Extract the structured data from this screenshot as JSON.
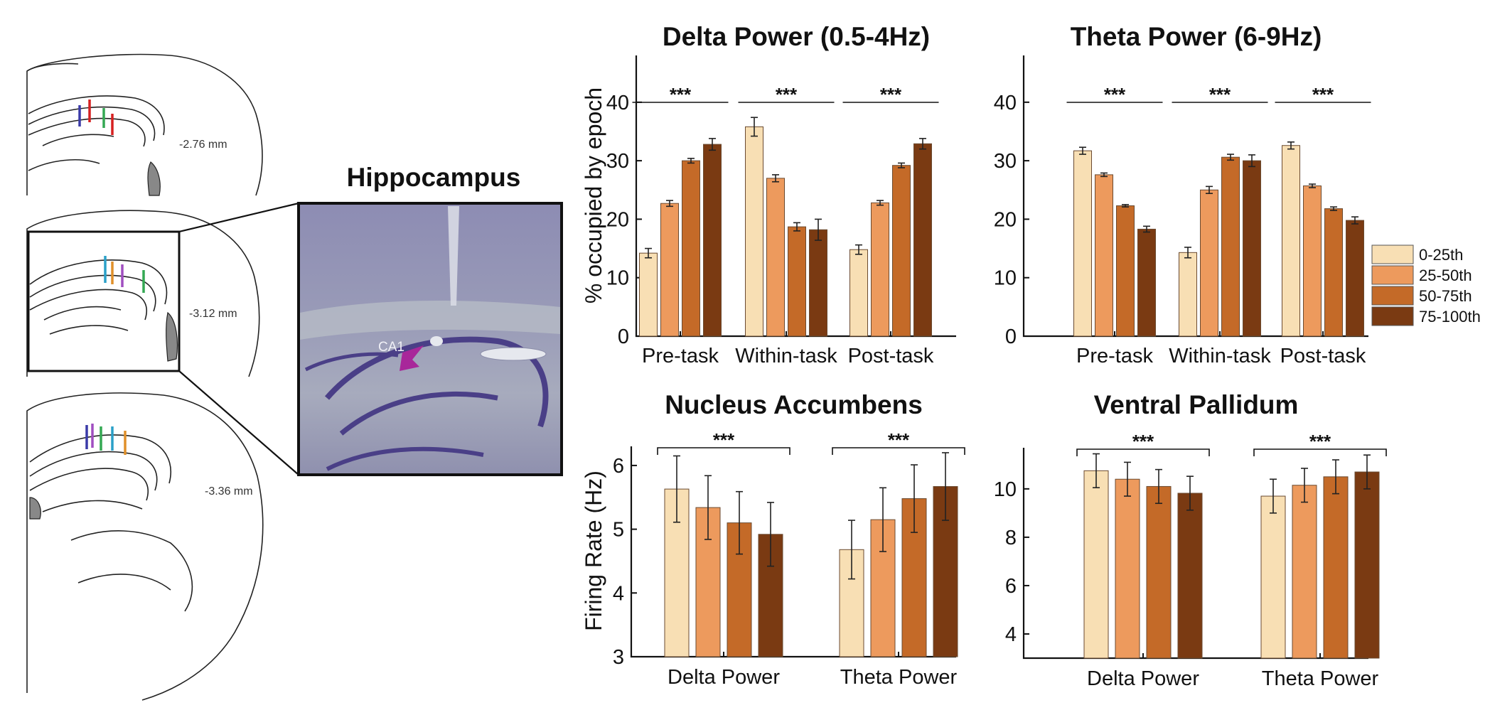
{
  "colors": [
    "#f8dfb4",
    "#ed9a5d",
    "#c46a28",
    "#7a3a12"
  ],
  "legend": [
    "0-25th",
    "25-50th",
    "50-75th",
    "75-100th"
  ],
  "histology": {
    "title": "Hippocampus",
    "region_label": "CA1",
    "sections": [
      "-2.76 mm",
      "-3.12 mm",
      "-3.36 mm"
    ]
  },
  "chart_data": [
    {
      "type": "bar",
      "title": "Delta Power (0.5-4Hz)",
      "ylabel": "% occupied by epoch",
      "categories": [
        "Pre-task",
        "Within-task",
        "Post-task"
      ],
      "ylim": [
        0,
        48
      ],
      "yticks": [
        0,
        10,
        20,
        30,
        40
      ],
      "significance": "***",
      "series": [
        {
          "name": "0-25th",
          "values": [
            14.2,
            35.8,
            14.8
          ],
          "errors": [
            0.8,
            1.6,
            0.8
          ]
        },
        {
          "name": "25-50th",
          "values": [
            22.7,
            27.0,
            22.8
          ],
          "errors": [
            0.5,
            0.6,
            0.4
          ]
        },
        {
          "name": "50-75th",
          "values": [
            30.0,
            18.7,
            29.2
          ],
          "errors": [
            0.4,
            0.7,
            0.4
          ]
        },
        {
          "name": "75-100th",
          "values": [
            32.8,
            18.2,
            32.9
          ],
          "errors": [
            1.0,
            1.8,
            0.9
          ]
        }
      ]
    },
    {
      "type": "bar",
      "title": "Theta Power (6-9Hz)",
      "ylabel": "",
      "categories": [
        "Pre-task",
        "Within-task",
        "Post-task"
      ],
      "ylim": [
        0,
        48
      ],
      "yticks": [
        0,
        10,
        20,
        30,
        40
      ],
      "significance": "***",
      "series": [
        {
          "name": "0-25th",
          "values": [
            31.7,
            14.3,
            32.6
          ],
          "errors": [
            0.6,
            0.9,
            0.6
          ]
        },
        {
          "name": "25-50th",
          "values": [
            27.6,
            25.0,
            25.7
          ],
          "errors": [
            0.3,
            0.6,
            0.3
          ]
        },
        {
          "name": "50-75th",
          "values": [
            22.3,
            30.6,
            21.8
          ],
          "errors": [
            0.2,
            0.5,
            0.3
          ]
        },
        {
          "name": "75-100th",
          "values": [
            18.3,
            30.0,
            19.8
          ],
          "errors": [
            0.5,
            1.0,
            0.6
          ]
        }
      ]
    },
    {
      "type": "bar",
      "title": "Nucleus Accumbens",
      "ylabel": "Firing Rate (Hz)",
      "categories": [
        "Delta Power",
        "Theta Power"
      ],
      "ylim": [
        3,
        6.3
      ],
      "yticks": [
        3,
        4,
        5,
        6
      ],
      "significance": "***",
      "series": [
        {
          "name": "0-25th",
          "values": [
            5.63,
            4.68
          ],
          "errors": [
            0.52,
            0.46
          ]
        },
        {
          "name": "25-50th",
          "values": [
            5.34,
            5.15
          ],
          "errors": [
            0.5,
            0.5
          ]
        },
        {
          "name": "50-75th",
          "values": [
            5.1,
            5.48
          ],
          "errors": [
            0.49,
            0.53
          ]
        },
        {
          "name": "75-100th",
          "values": [
            4.92,
            5.67
          ],
          "errors": [
            0.5,
            0.53
          ]
        }
      ]
    },
    {
      "type": "bar",
      "title": "Ventral Pallidum",
      "ylabel": "",
      "categories": [
        "Delta Power",
        "Theta Power"
      ],
      "ylim": [
        3,
        11.7
      ],
      "yticks": [
        4,
        6,
        8,
        10
      ],
      "significance": "***",
      "series": [
        {
          "name": "0-25th",
          "values": [
            10.75,
            9.7
          ],
          "errors": [
            0.7,
            0.7
          ]
        },
        {
          "name": "25-50th",
          "values": [
            10.4,
            10.15
          ],
          "errors": [
            0.7,
            0.7
          ]
        },
        {
          "name": "50-75th",
          "values": [
            10.1,
            10.5
          ],
          "errors": [
            0.7,
            0.7
          ]
        },
        {
          "name": "75-100th",
          "values": [
            9.82,
            10.7
          ],
          "errors": [
            0.7,
            0.7
          ]
        }
      ]
    }
  ]
}
